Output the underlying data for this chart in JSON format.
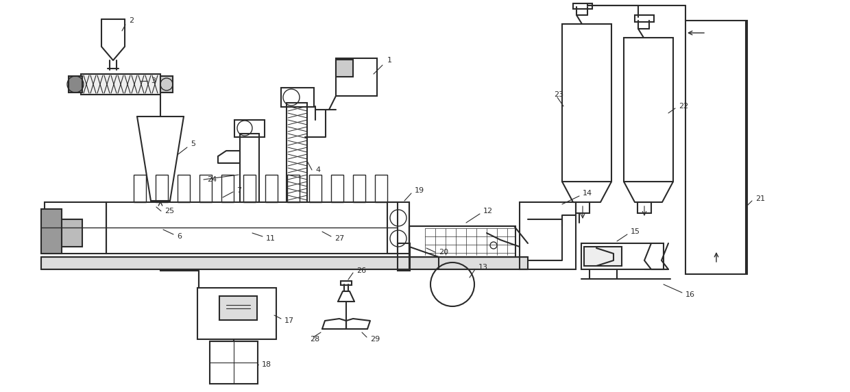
{
  "bg_color": "#ffffff",
  "line_color": "#2a2a2a",
  "fig_width": 12.4,
  "fig_height": 5.72,
  "dpi": 100
}
